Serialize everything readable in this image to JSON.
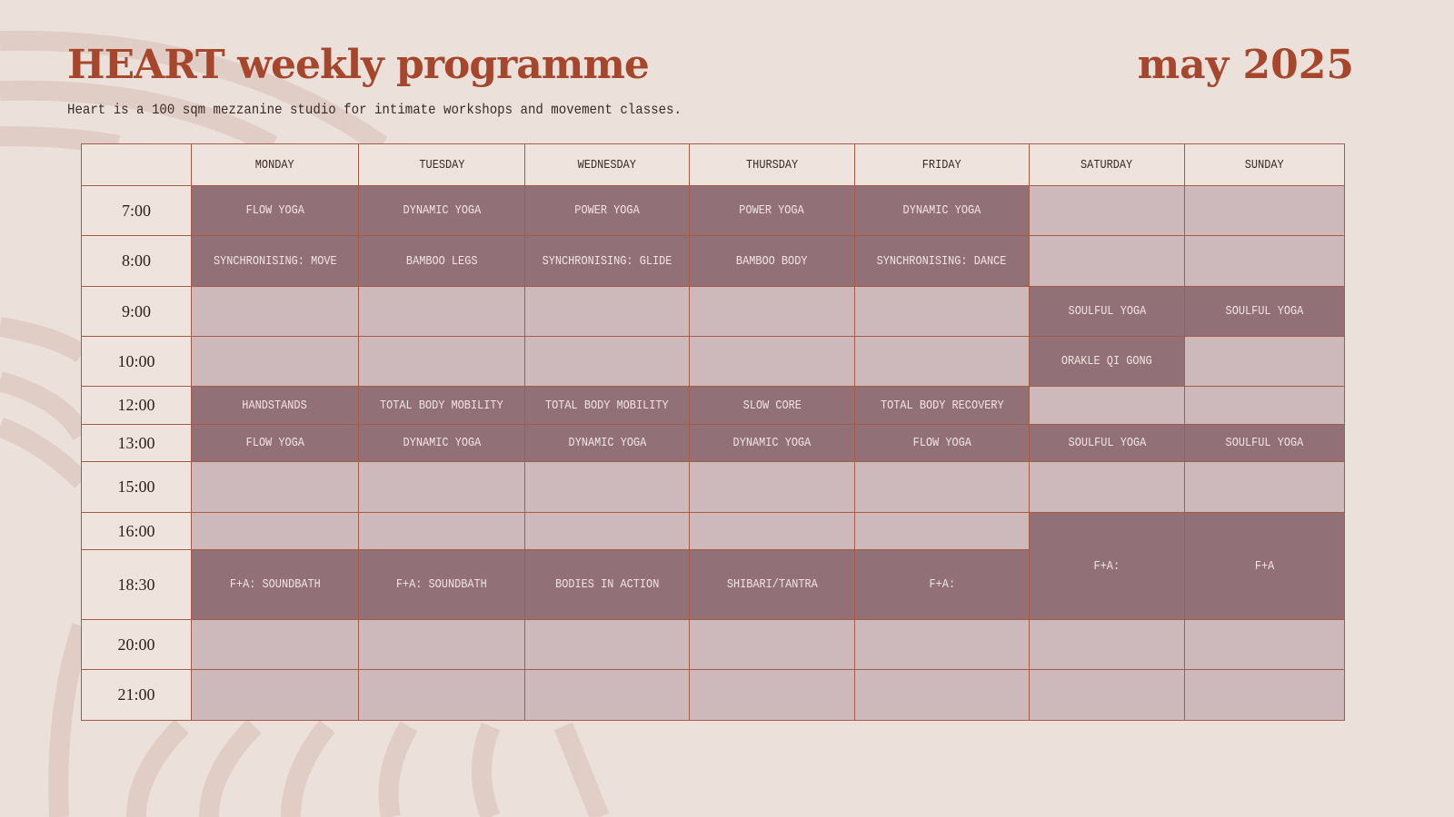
{
  "header": {
    "title": "HEART weekly programme",
    "month": "may 2025",
    "subtitle": "Heart is a 100 sqm mezzanine studio for intimate workshops and movement classes."
  },
  "colors": {
    "background": "#ece0da",
    "title": "#a5462d",
    "booked": "#927077",
    "empty": "#cdb9bc",
    "border": "#a65a48"
  },
  "schedule": {
    "days": [
      "MONDAY",
      "TUESDAY",
      "WEDNESDAY",
      "THURSDAY",
      "FRIDAY",
      "SATURDAY",
      "SUNDAY"
    ],
    "rows": [
      {
        "time": "7:00",
        "cells": [
          {
            "text": "FLOW YOGA",
            "booked": true
          },
          {
            "text": "DYNAMIC YOGA",
            "booked": true
          },
          {
            "text": "POWER YOGA",
            "booked": true
          },
          {
            "text": "POWER YOGA",
            "booked": true
          },
          {
            "text": "DYNAMIC YOGA",
            "booked": true
          },
          {
            "text": "",
            "booked": false
          },
          {
            "text": "",
            "booked": false
          }
        ]
      },
      {
        "time": "8:00",
        "cells": [
          {
            "text": "SYNCHRONISING: MOVE",
            "booked": true
          },
          {
            "text": "BAMBOO LEGS",
            "booked": true
          },
          {
            "text": "SYNCHRONISING: GLIDE",
            "booked": true
          },
          {
            "text": "BAMBOO BODY",
            "booked": true
          },
          {
            "text": "SYNCHRONISING: DANCE",
            "booked": true
          },
          {
            "text": "",
            "booked": false
          },
          {
            "text": "",
            "booked": false
          }
        ]
      },
      {
        "time": "9:00",
        "cells": [
          {
            "text": "",
            "booked": false
          },
          {
            "text": "",
            "booked": false
          },
          {
            "text": "",
            "booked": false
          },
          {
            "text": "",
            "booked": false
          },
          {
            "text": "",
            "booked": false
          },
          {
            "text": "SOULFUL YOGA",
            "booked": true
          },
          {
            "text": "SOULFUL YOGA",
            "booked": true
          }
        ]
      },
      {
        "time": "10:00",
        "cells": [
          {
            "text": "",
            "booked": false
          },
          {
            "text": "",
            "booked": false
          },
          {
            "text": "",
            "booked": false
          },
          {
            "text": "",
            "booked": false
          },
          {
            "text": "",
            "booked": false
          },
          {
            "text": "ORAKLE QI GONG",
            "booked": true
          },
          {
            "text": "",
            "booked": false
          }
        ]
      },
      {
        "time": "12:00",
        "cells": [
          {
            "text": "HANDSTANDS",
            "booked": true
          },
          {
            "text": "TOTAL BODY MOBILITY",
            "booked": true
          },
          {
            "text": "TOTAL BODY MOBILITY",
            "booked": true
          },
          {
            "text": "SLOW CORE",
            "booked": true
          },
          {
            "text": "TOTAL BODY RECOVERY",
            "booked": true
          },
          {
            "text": "",
            "booked": false
          },
          {
            "text": "",
            "booked": false
          }
        ]
      },
      {
        "time": "13:00",
        "cells": [
          {
            "text": "FLOW YOGA",
            "booked": true
          },
          {
            "text": "DYNAMIC YOGA",
            "booked": true
          },
          {
            "text": "DYNAMIC YOGA",
            "booked": true
          },
          {
            "text": "DYNAMIC YOGA",
            "booked": true
          },
          {
            "text": "FLOW YOGA",
            "booked": true
          },
          {
            "text": "SOULFUL YOGA",
            "booked": true
          },
          {
            "text": "SOULFUL YOGA",
            "booked": true
          }
        ]
      },
      {
        "time": "15:00",
        "cells": [
          {
            "text": "",
            "booked": false
          },
          {
            "text": "",
            "booked": false
          },
          {
            "text": "",
            "booked": false
          },
          {
            "text": "",
            "booked": false
          },
          {
            "text": "",
            "booked": false
          },
          {
            "text": "",
            "booked": false
          },
          {
            "text": "",
            "booked": false
          }
        ]
      },
      {
        "time": "16:00",
        "cells": [
          {
            "text": "",
            "booked": false
          },
          {
            "text": "",
            "booked": false
          },
          {
            "text": "",
            "booked": false
          },
          {
            "text": "",
            "booked": false
          },
          {
            "text": "",
            "booked": false
          },
          {
            "text": "F+A:",
            "booked": true,
            "rowspan": 2
          },
          {
            "text": "F+A",
            "booked": true,
            "rowspan": 2
          }
        ]
      },
      {
        "time": "18:30",
        "cells": [
          {
            "text": "F+A: SOUNDBATH",
            "booked": true
          },
          {
            "text": "F+A: SOUNDBATH",
            "booked": true
          },
          {
            "text": "BODIES IN ACTION",
            "booked": true
          },
          {
            "text": "SHIBARI/TANTRA",
            "booked": true
          },
          {
            "text": "F+A:",
            "booked": true
          }
        ]
      },
      {
        "time": "20:00",
        "cells": [
          {
            "text": "",
            "booked": false
          },
          {
            "text": "",
            "booked": false
          },
          {
            "text": "",
            "booked": false
          },
          {
            "text": "",
            "booked": false
          },
          {
            "text": "",
            "booked": false
          },
          {
            "text": "",
            "booked": false
          },
          {
            "text": "",
            "booked": false
          }
        ]
      },
      {
        "time": "21:00",
        "cells": [
          {
            "text": "",
            "booked": false
          },
          {
            "text": "",
            "booked": false
          },
          {
            "text": "",
            "booked": false
          },
          {
            "text": "",
            "booked": false
          },
          {
            "text": "",
            "booked": false
          },
          {
            "text": "",
            "booked": false
          },
          {
            "text": "",
            "booked": false
          }
        ]
      }
    ]
  }
}
